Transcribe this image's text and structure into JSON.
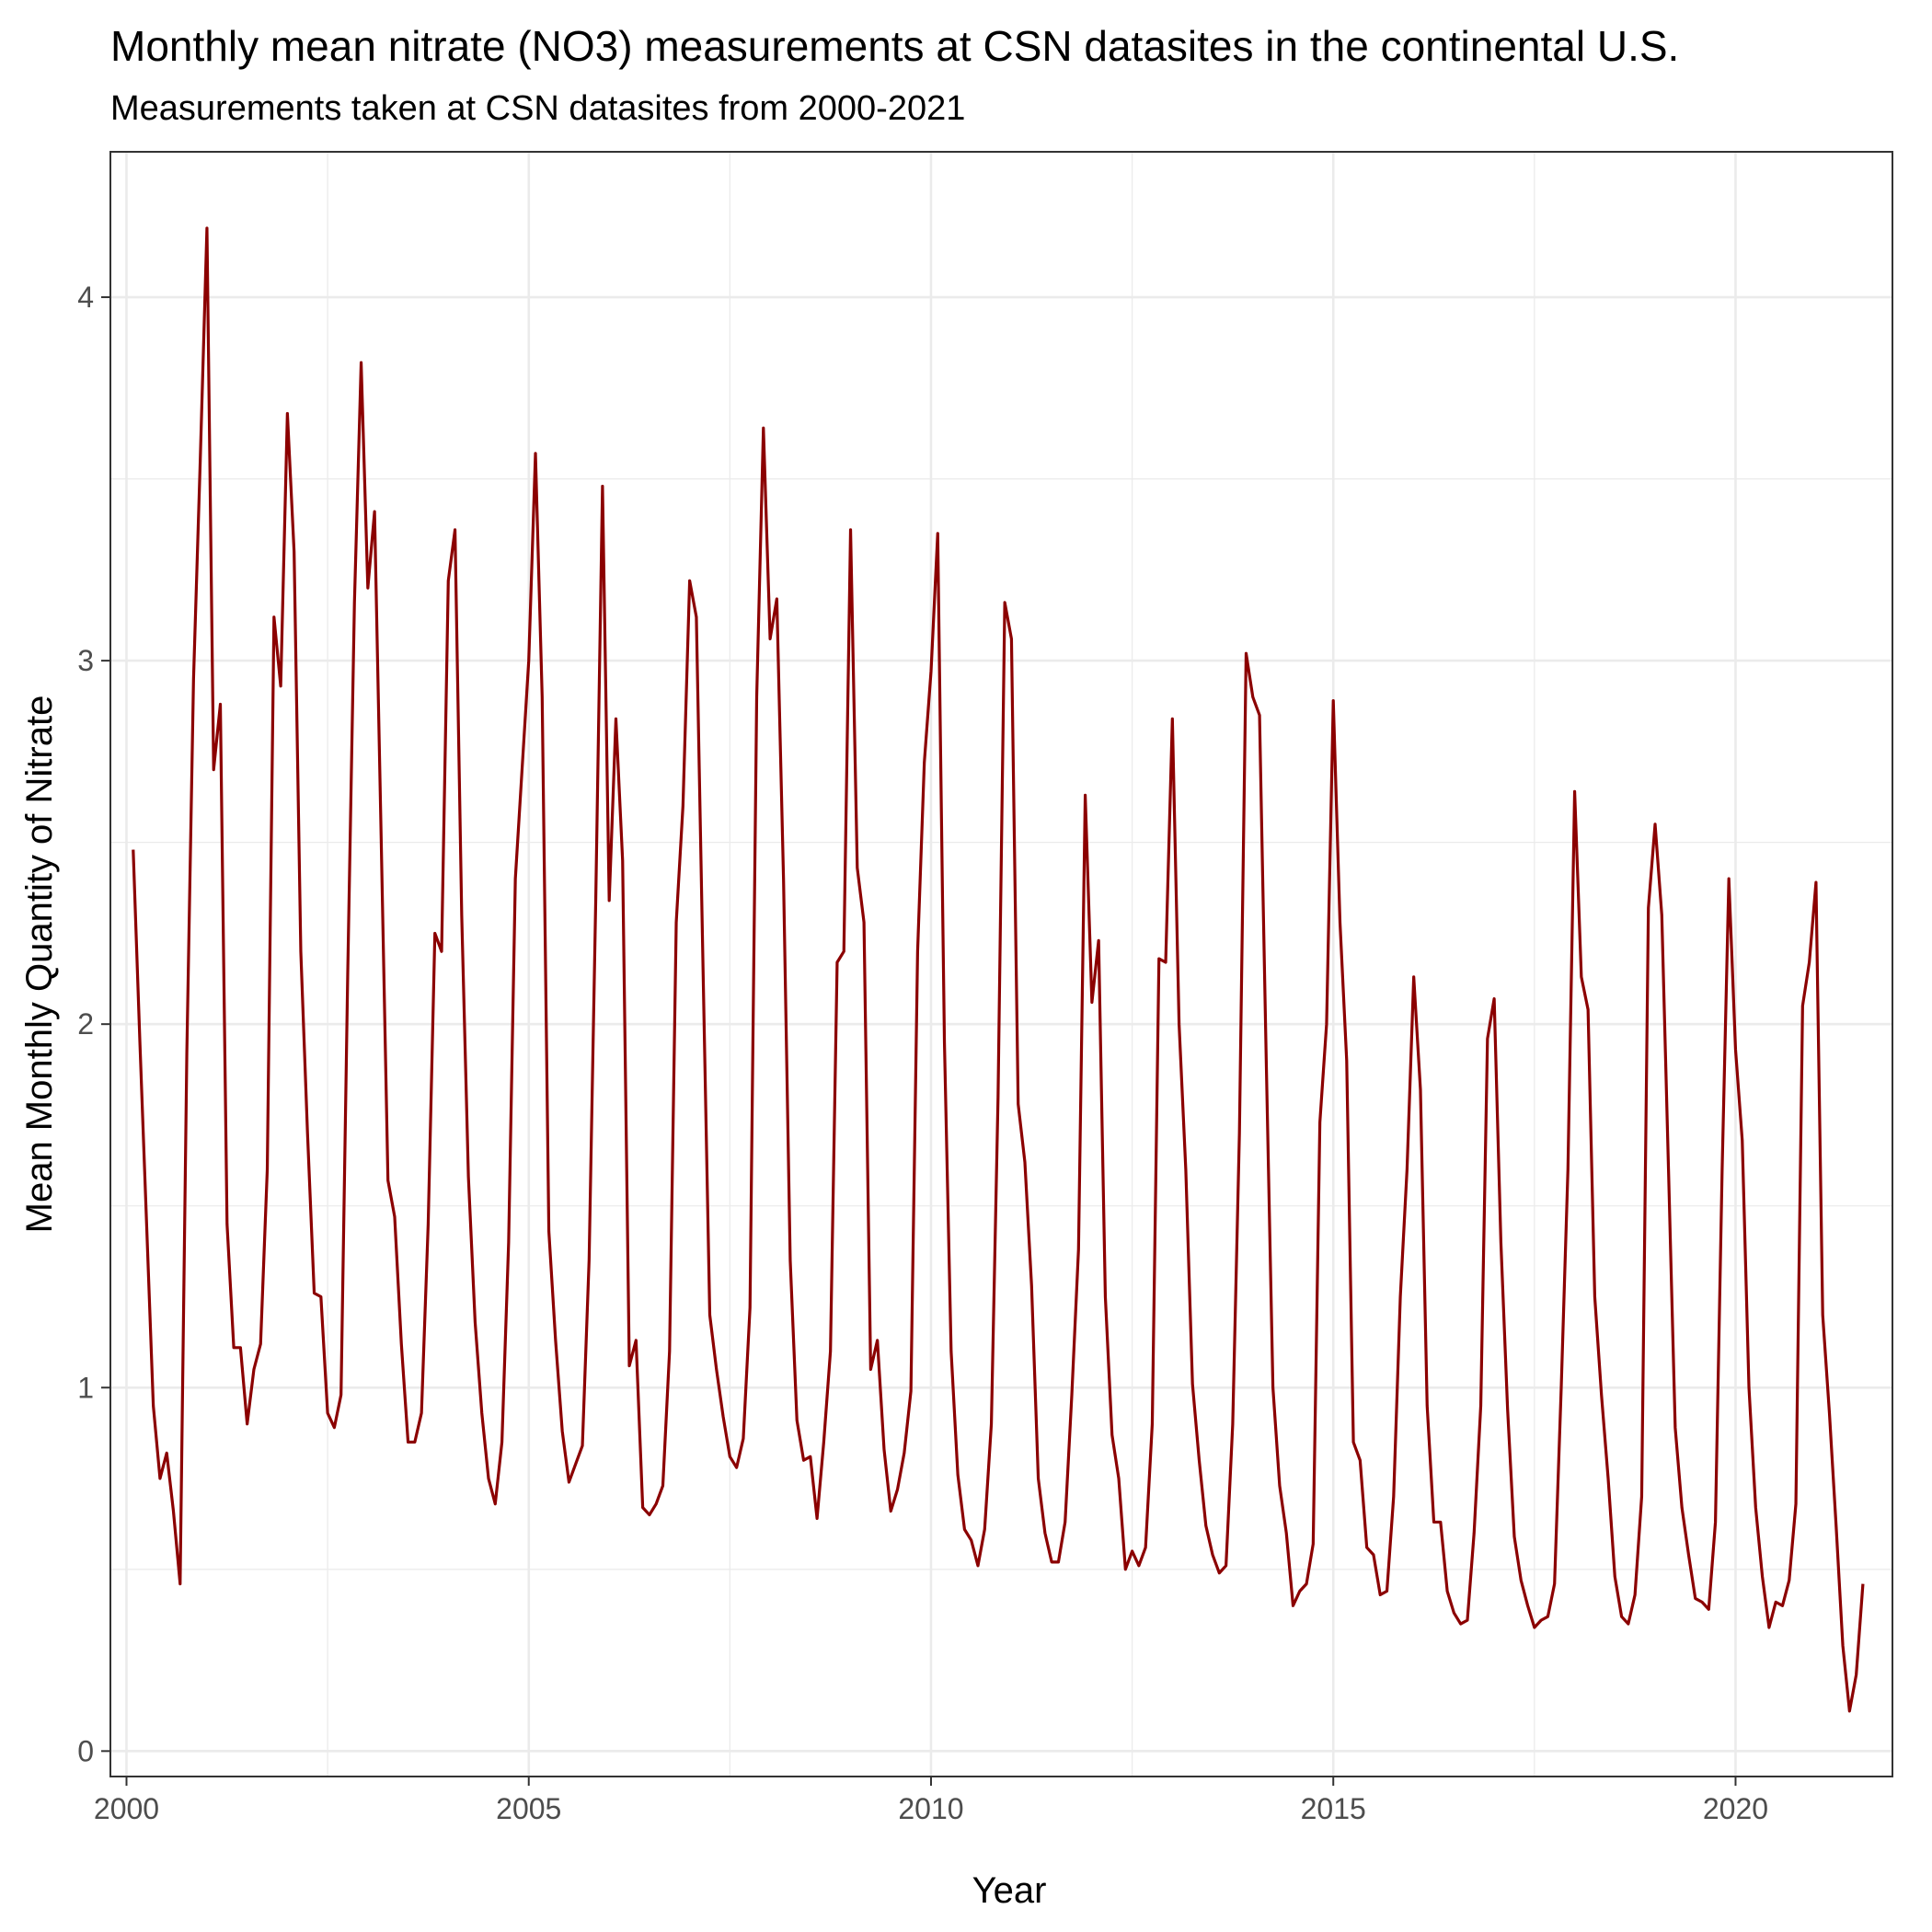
{
  "chart_data": {
    "type": "line",
    "title": "Monthly mean nitrate (NO3) measurements at CSN datasites in the continental U.S.",
    "subtitle": "Measurements taken at CSN datasites from 2000-2021",
    "xlabel": "Year",
    "ylabel": "Mean Monthly Quantity of Nitrate",
    "xlim": [
      1999.8,
      2021.95
    ],
    "ylim": [
      -0.07,
      4.4
    ],
    "x_breaks": [
      2000,
      2005,
      2010,
      2015,
      2020
    ],
    "x_tick_labels": [
      "2000",
      "2005",
      "2010",
      "2015",
      "2020"
    ],
    "y_breaks": [
      0,
      1,
      2,
      3,
      4
    ],
    "y_tick_labels": [
      "0",
      "1",
      "2",
      "3",
      "4"
    ],
    "grid": true,
    "line_color": "#8b0000",
    "series": [
      {
        "x_start": 2000.0833,
        "x_step": 0.083333,
        "values": [
          2.48,
          1.95,
          1.45,
          0.95,
          0.75,
          0.82,
          0.66,
          0.46,
          1.92,
          2.95,
          3.55,
          4.19,
          2.7,
          2.88,
          1.45,
          1.11,
          1.11,
          0.9,
          1.05,
          1.12,
          1.6,
          3.12,
          2.93,
          3.68,
          3.3,
          2.2,
          1.7,
          1.26,
          1.25,
          0.93,
          0.89,
          0.98,
          2.14,
          3.16,
          3.82,
          3.2,
          3.41,
          2.5,
          1.57,
          1.47,
          1.12,
          0.85,
          0.85,
          0.93,
          1.45,
          2.25,
          2.2,
          3.22,
          3.36,
          2.3,
          1.58,
          1.18,
          0.93,
          0.75,
          0.68,
          0.85,
          1.4,
          2.4,
          2.7,
          3.0,
          3.57,
          2.9,
          1.43,
          1.13,
          0.88,
          0.74,
          0.79,
          0.84,
          1.35,
          2.35,
          3.48,
          2.34,
          2.84,
          2.45,
          1.06,
          1.13,
          0.67,
          0.65,
          0.68,
          0.73,
          1.1,
          2.28,
          2.6,
          3.22,
          3.12,
          2.15,
          1.2,
          1.05,
          0.92,
          0.81,
          0.78,
          0.86,
          1.22,
          2.9,
          3.64,
          3.06,
          3.17,
          2.4,
          1.35,
          0.91,
          0.8,
          0.81,
          0.64,
          0.85,
          1.1,
          2.17,
          2.2,
          3.36,
          2.43,
          2.28,
          1.05,
          1.13,
          0.83,
          0.66,
          0.72,
          0.82,
          0.99,
          2.2,
          2.72,
          2.97,
          3.35,
          1.95,
          1.1,
          0.76,
          0.61,
          0.58,
          0.51,
          0.61,
          0.9,
          1.8,
          3.16,
          3.06,
          1.78,
          1.62,
          1.28,
          0.75,
          0.6,
          0.52,
          0.52,
          0.63,
          0.98,
          1.38,
          2.63,
          2.06,
          2.23,
          1.25,
          0.87,
          0.75,
          0.5,
          0.55,
          0.51,
          0.56,
          0.9,
          2.18,
          2.17,
          2.84,
          2.0,
          1.6,
          1.01,
          0.8,
          0.62,
          0.54,
          0.49,
          0.51,
          0.9,
          1.7,
          3.02,
          2.9,
          2.85,
          1.9,
          1.0,
          0.73,
          0.6,
          0.4,
          0.44,
          0.46,
          0.57,
          1.73,
          2.0,
          2.89,
          2.28,
          1.9,
          0.85,
          0.8,
          0.56,
          0.54,
          0.43,
          0.44,
          0.7,
          1.25,
          1.6,
          2.13,
          1.82,
          0.95,
          0.63,
          0.63,
          0.44,
          0.38,
          0.35,
          0.36,
          0.6,
          0.95,
          1.96,
          2.07,
          1.4,
          0.94,
          0.59,
          0.47,
          0.4,
          0.34,
          0.36,
          0.37,
          0.46,
          1.0,
          1.6,
          2.64,
          2.13,
          2.04,
          1.25,
          0.98,
          0.75,
          0.48,
          0.37,
          0.35,
          0.43,
          0.7,
          2.32,
          2.55,
          2.3,
          1.6,
          0.89,
          0.67,
          0.54,
          0.42,
          0.41,
          0.39,
          0.63,
          1.6,
          2.4,
          1.93,
          1.68,
          1.0,
          0.67,
          0.48,
          0.34,
          0.41,
          0.4,
          0.47,
          0.68,
          2.05,
          2.17,
          2.39,
          1.2,
          0.93,
          0.62,
          0.29,
          0.11,
          0.21,
          0.46
        ]
      }
    ]
  }
}
